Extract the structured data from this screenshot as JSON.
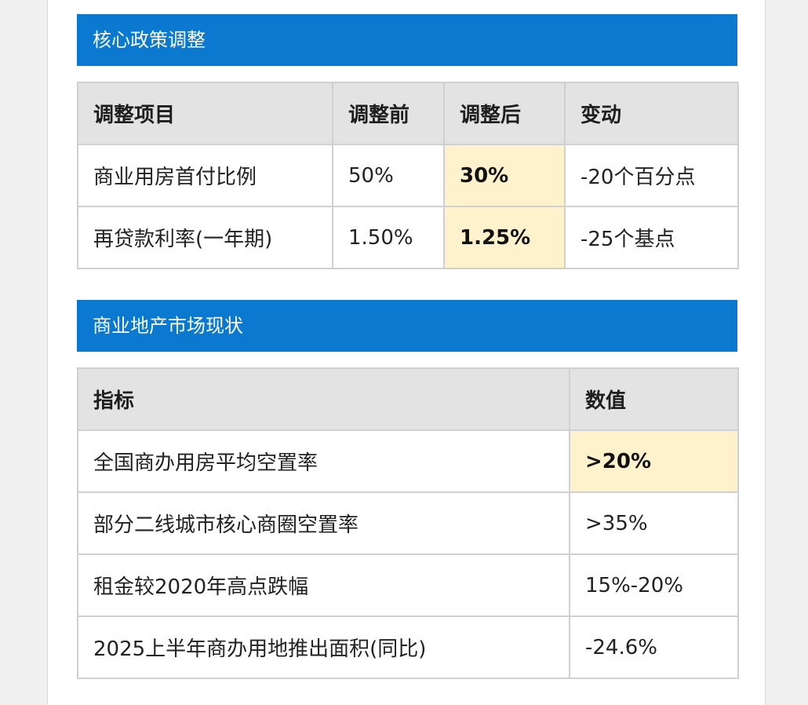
{
  "colors": {
    "header_bg": "#0a79cf",
    "header_text": "#ffffff",
    "table_head_bg": "#e3e3e3",
    "highlight_bg": "#fdf2cc",
    "border": "#d0d0d0"
  },
  "policy_section": {
    "title": "核心政策调整",
    "columns": [
      "调整项目",
      "调整前",
      "调整后",
      "变动"
    ],
    "rows": [
      [
        "商业用房首付比例",
        "50%",
        "30%",
        "-20个百分点"
      ],
      [
        "再贷款利率(一年期)",
        "1.50%",
        "1.25%",
        "-25个基点"
      ]
    ]
  },
  "market_section": {
    "title": "商业地产市场现状",
    "columns": [
      "指标",
      "数值"
    ],
    "rows": [
      [
        "全国商办用房平均空置率",
        ">20%"
      ],
      [
        "部分二线城市核心商圈空置率",
        ">35%"
      ],
      [
        "租金较2020年高点跌幅",
        "15%-20%"
      ],
      [
        "2025上半年商办用地推出面积(同比)",
        "-24.6%"
      ]
    ]
  }
}
